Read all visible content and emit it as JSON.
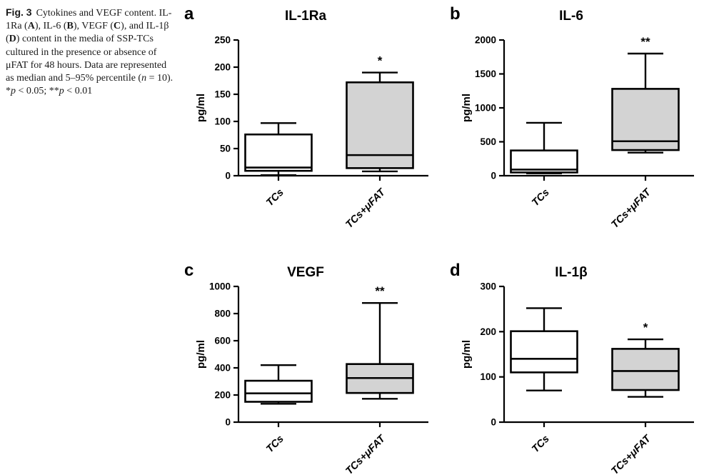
{
  "figure": {
    "caption_segments": [
      {
        "text": "Fig. 3",
        "bold": true,
        "sans": true
      },
      {
        "text": "Cytokines and VEGF content. IL-1Ra ("
      },
      {
        "text": "A",
        "bold": true
      },
      {
        "text": "), IL-6 ("
      },
      {
        "text": "B",
        "bold": true
      },
      {
        "text": "), VEGF ("
      },
      {
        "text": "C",
        "bold": true
      },
      {
        "text": "), and IL-1β ("
      },
      {
        "text": "D",
        "bold": true
      },
      {
        "text": ") content in the media of SSP-TCs cultured in the presence or absence of μFAT for 48 hours. Data are represented as median and 5–95% percentile ("
      },
      {
        "text": "n",
        "italic": true
      },
      {
        "text": " = 10). *"
      },
      {
        "text": "p",
        "italic": true
      },
      {
        "text": " < 0.05; **"
      },
      {
        "text": "p",
        "italic": true
      },
      {
        "text": " < 0.01"
      }
    ]
  },
  "colors": {
    "line": "#000000",
    "box_control_fill": "#ffffff",
    "box_treated_fill": "#d3d3d3",
    "background": "#ffffff"
  },
  "chart_data": [
    {
      "type": "box",
      "panel_label": "a",
      "title": "IL-1Ra",
      "ylabel": "pg/ml",
      "ylim": [
        0,
        250
      ],
      "yticks": [
        0,
        50,
        100,
        150,
        200,
        250
      ],
      "grid": false,
      "legend": false,
      "categories": [
        "TCs",
        "TCs+μFAT"
      ],
      "boxes": [
        {
          "category": "TCs",
          "whisker_low": 1,
          "q1": 9,
          "median": 15,
          "q3": 76,
          "whisker_high": 97,
          "fill": "#ffffff",
          "significance": ""
        },
        {
          "category": "TCs+μFAT",
          "whisker_low": 8,
          "q1": 14,
          "median": 38,
          "q3": 172,
          "whisker_high": 190,
          "fill": "#d3d3d3",
          "significance": "*"
        }
      ]
    },
    {
      "type": "box",
      "panel_label": "b",
      "title": "IL-6",
      "ylabel": "pg/ml",
      "ylim": [
        0,
        2000
      ],
      "yticks": [
        0,
        500,
        1000,
        1500,
        2000
      ],
      "grid": false,
      "legend": false,
      "categories": [
        "TCs",
        "TCs+μFAT"
      ],
      "boxes": [
        {
          "category": "TCs",
          "whisker_low": 35,
          "q1": 48,
          "median": 90,
          "q3": 372,
          "whisker_high": 780,
          "fill": "#ffffff",
          "significance": ""
        },
        {
          "category": "TCs+μFAT",
          "whisker_low": 340,
          "q1": 378,
          "median": 508,
          "q3": 1280,
          "whisker_high": 1800,
          "fill": "#d3d3d3",
          "significance": "**"
        }
      ]
    },
    {
      "type": "box",
      "panel_label": "c",
      "title": "VEGF",
      "ylabel": "pg/ml",
      "ylim": [
        0,
        1000
      ],
      "yticks": [
        0,
        200,
        400,
        600,
        800,
        1000
      ],
      "grid": false,
      "legend": false,
      "categories": [
        "TCs",
        "TCs+μFAT"
      ],
      "boxes": [
        {
          "category": "TCs",
          "whisker_low": 135,
          "q1": 150,
          "median": 212,
          "q3": 305,
          "whisker_high": 420,
          "fill": "#ffffff",
          "significance": ""
        },
        {
          "category": "TCs+μFAT",
          "whisker_low": 172,
          "q1": 215,
          "median": 325,
          "q3": 428,
          "whisker_high": 878,
          "fill": "#d3d3d3",
          "significance": "**"
        }
      ]
    },
    {
      "type": "box",
      "panel_label": "d",
      "title": "IL-1β",
      "ylabel": "pg/ml",
      "ylim": [
        0,
        300
      ],
      "yticks": [
        0,
        100,
        200,
        300
      ],
      "grid": false,
      "legend": false,
      "categories": [
        "TCs",
        "TCs+μFAT"
      ],
      "boxes": [
        {
          "category": "TCs",
          "whisker_low": 70,
          "q1": 110,
          "median": 140,
          "q3": 201,
          "whisker_high": 252,
          "fill": "#ffffff",
          "significance": ""
        },
        {
          "category": "TCs+μFAT",
          "whisker_low": 56,
          "q1": 71,
          "median": 113,
          "q3": 162,
          "whisker_high": 183,
          "fill": "#d3d3d3",
          "significance": "*"
        }
      ]
    }
  ]
}
